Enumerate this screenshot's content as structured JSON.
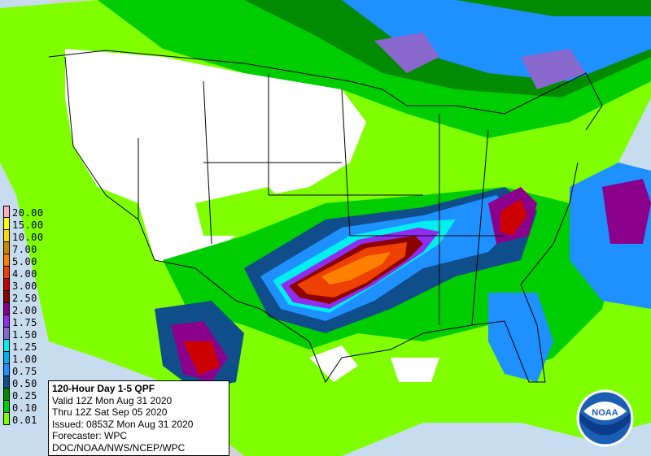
{
  "info_box": {
    "title": "120-Hour Day 1-5 QPF",
    "valid": "Valid 12Z Mon Aug 31 2020",
    "thru": "Thru 12Z Sat Sep 05 2020",
    "issued": "Issued: 0853Z Mon Aug 31 2020",
    "forecaster": "Forecaster: WPC",
    "agency": "DOC/NOAA/NWS/NCEP/WPC"
  },
  "legend": [
    {
      "label": "20.00",
      "color": "#ffaeb9"
    },
    {
      "label": "15.00",
      "color": "#ffff00"
    },
    {
      "label": "10.00",
      "color": "#ffd700"
    },
    {
      "label": "7.00",
      "color": "#cd8500"
    },
    {
      "label": "5.00",
      "color": "#ff7f00"
    },
    {
      "label": "4.00",
      "color": "#ee4000"
    },
    {
      "label": "3.00",
      "color": "#cd0000"
    },
    {
      "label": "2.50",
      "color": "#8b0000"
    },
    {
      "label": "2.00",
      "color": "#8b008b"
    },
    {
      "label": "1.75",
      "color": "#912cee"
    },
    {
      "label": "1.50",
      "color": "#8968cd"
    },
    {
      "label": "1.25",
      "color": "#00eeee"
    },
    {
      "label": "1.00",
      "color": "#00b2ee"
    },
    {
      "label": "0.75",
      "color": "#1e90ff"
    },
    {
      "label": "0.50",
      "color": "#104e8b"
    },
    {
      "label": "0.25",
      "color": "#008b00"
    },
    {
      "label": "0.10",
      "color": "#00cd00"
    },
    {
      "label": "0.01",
      "color": "#7fff00"
    }
  ],
  "logo": {
    "text": "NOAA"
  }
}
